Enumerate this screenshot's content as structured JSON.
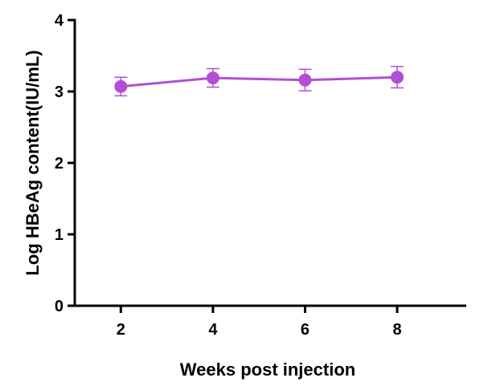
{
  "chart_data": {
    "type": "line",
    "title": "",
    "xlabel": "Weeks post injection",
    "ylabel": "Log HBeAg content(IU/mL)",
    "xlim": [
      1,
      9.5
    ],
    "ylim": [
      0,
      4
    ],
    "xticks": [
      2,
      4,
      6,
      8
    ],
    "yticks": [
      0,
      1,
      2,
      3,
      4
    ],
    "grid": false,
    "legend": "none",
    "series": [
      {
        "color": "#b04fd6",
        "x": [
          2,
          4,
          6,
          8
        ],
        "y": [
          3.07,
          3.19,
          3.16,
          3.2
        ],
        "error": [
          0.13,
          0.13,
          0.15,
          0.15
        ]
      }
    ]
  }
}
